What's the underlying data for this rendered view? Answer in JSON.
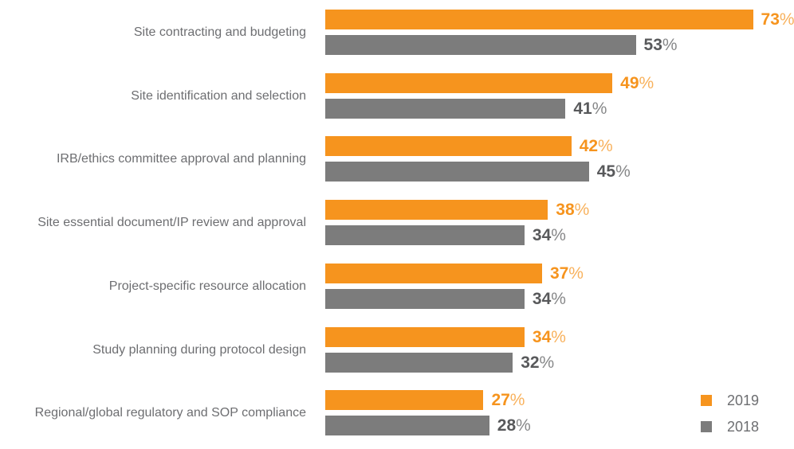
{
  "chart_data": {
    "type": "bar",
    "orientation": "horizontal",
    "title": "",
    "xlabel": "",
    "ylabel": "",
    "xlim": [
      0,
      100
    ],
    "grid": false,
    "value_suffix": "%",
    "legend_position": "bottom-right",
    "categories": [
      "Site contracting and budgeting",
      "Site identification and selection",
      "IRB/ethics committee approval and planning",
      "Site essential document/IP review and approval",
      "Project-specific resource allocation",
      "Study planning during protocol design",
      "Regional/global regulatory and SOP compliance"
    ],
    "series": [
      {
        "name": "2019",
        "color": "#F6941E",
        "value_color": "#F6941E",
        "values": [
          73,
          49,
          42,
          38,
          37,
          34,
          27
        ]
      },
      {
        "name": "2018",
        "color": "#7C7C7C",
        "value_color": "#58595B",
        "values": [
          53,
          41,
          45,
          34,
          34,
          32,
          28
        ]
      }
    ]
  },
  "legend": {
    "items": [
      {
        "label": "2019",
        "color": "#F6941E"
      },
      {
        "label": "2018",
        "color": "#7C7C7C"
      }
    ]
  },
  "colors": {
    "background": "#FFFFFF",
    "category_text": "#6D6E71",
    "legend_text": "#6D6E71"
  }
}
